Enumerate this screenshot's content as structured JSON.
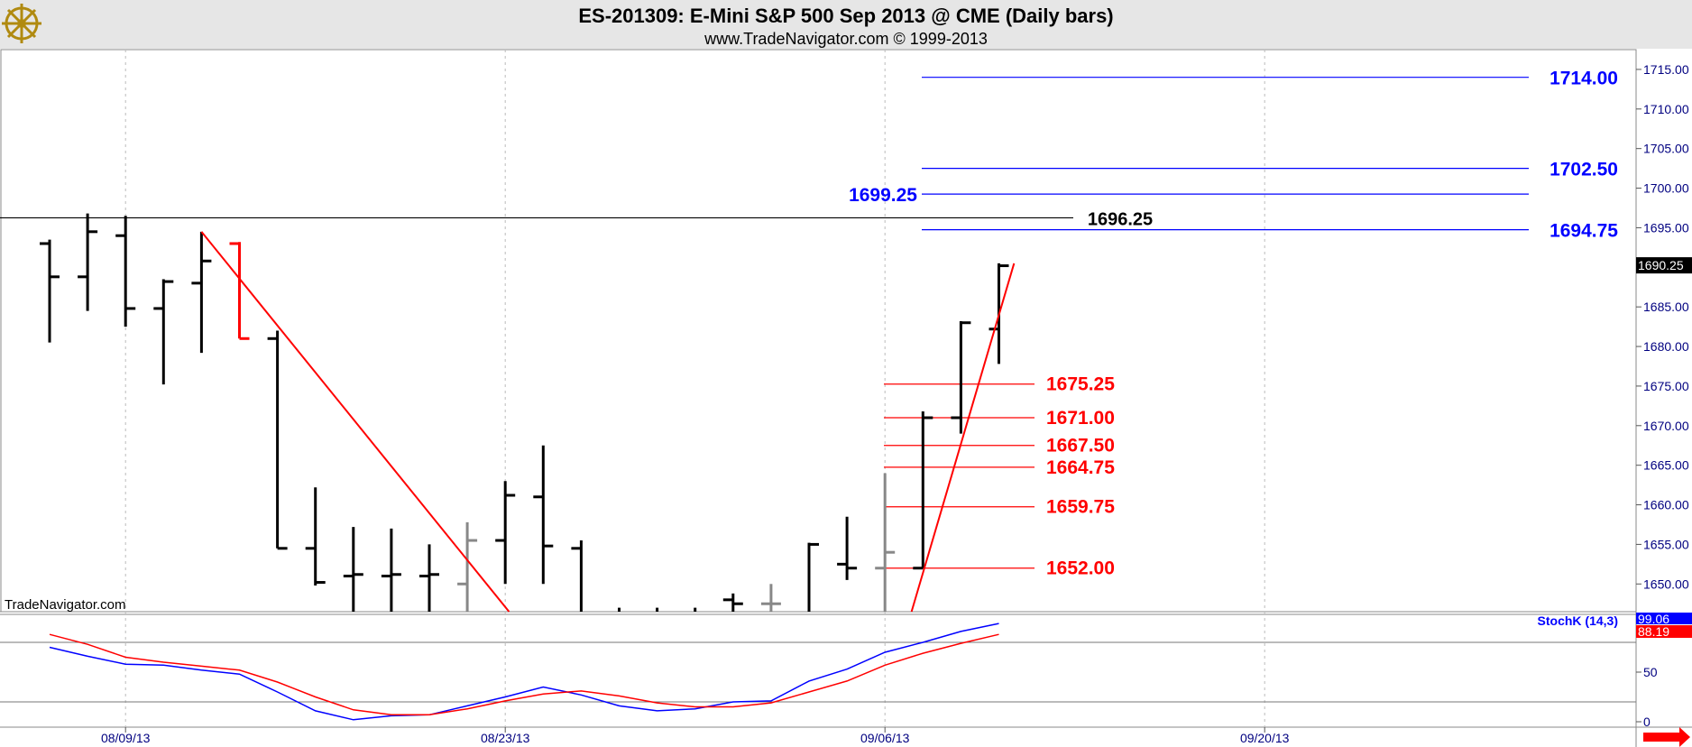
{
  "header": {
    "title": "ES-201309:  E-Mini S&P 500 Sep 2013 @ CME  (Daily bars)",
    "subtitle": "www.TradeNavigator.com © 1999-2013",
    "watermark": "TradeNavigator.com"
  },
  "colors": {
    "background": "#ffffff",
    "header_bg": "#e6e6e6",
    "bars": "#000000",
    "bars_gray": "#888888",
    "bars_red": "#ff0000",
    "red": "#ff0000",
    "blue": "#0000ff",
    "axis_text": "#000080",
    "grid": "#bbbbbb"
  },
  "icons": {
    "logo": "ship-wheel-logo-icon",
    "scroll": "red-right-arrow-icon"
  },
  "chart_data": {
    "type": "ohlc",
    "price_axis": {
      "ylim": [
        1646.5,
        1717.5
      ],
      "ticks": [
        1715,
        1710,
        1705,
        1700,
        1695,
        1690,
        1685,
        1680,
        1675,
        1670,
        1665,
        1660,
        1655,
        1650
      ],
      "tick_labels": [
        "1715.00",
        "1710.00",
        "1705.00",
        "1700.00",
        "1695.00",
        "1690.00",
        "1685.00",
        "1680.00",
        "1675.00",
        "1670.00",
        "1665.00",
        "1660.00",
        "1655.00",
        "1650.00"
      ],
      "last_price_label": "1690.25",
      "last_price": 1690.25
    },
    "x_axis": {
      "date_labels": [
        {
          "label": "08/09/13",
          "bar": 2
        },
        {
          "label": "08/23/13",
          "bar": 12
        },
        {
          "label": "09/06/13",
          "bar": 22
        },
        {
          "label": "09/20/13",
          "bar": 32
        }
      ]
    },
    "bars": [
      {
        "o": 1693.0,
        "h": 1693.5,
        "l": 1680.5,
        "c": 1688.8,
        "color": "black"
      },
      {
        "o": 1688.8,
        "h": 1696.8,
        "l": 1684.5,
        "c": 1694.5,
        "color": "black"
      },
      {
        "o": 1694.0,
        "h": 1696.5,
        "l": 1682.5,
        "c": 1684.8,
        "color": "black"
      },
      {
        "o": 1684.8,
        "h": 1688.5,
        "l": 1675.2,
        "c": 1688.2,
        "color": "black"
      },
      {
        "o": 1688.0,
        "h": 1694.5,
        "l": 1679.2,
        "c": 1690.8,
        "color": "black"
      },
      {
        "o": 1693.0,
        "h": 1693.2,
        "l": 1681.0,
        "c": 1681.0,
        "color": "red"
      },
      {
        "o": 1681.0,
        "h": 1682.0,
        "l": 1654.5,
        "c": 1654.5,
        "color": "black"
      },
      {
        "o": 1654.5,
        "h": 1662.2,
        "l": 1649.8,
        "c": 1650.2,
        "color": "black"
      },
      {
        "o": 1651.0,
        "h": 1657.2,
        "l": 1645.0,
        "c": 1651.2,
        "color": "black"
      },
      {
        "o": 1651.0,
        "h": 1657.0,
        "l": 1645.0,
        "c": 1651.2,
        "color": "black"
      },
      {
        "o": 1651.0,
        "h": 1655.0,
        "l": 1645.0,
        "c": 1651.2,
        "color": "black"
      },
      {
        "o": 1650.0,
        "h": 1657.8,
        "l": 1646.0,
        "c": 1655.5,
        "color": "gray"
      },
      {
        "o": 1655.5,
        "h": 1663.0,
        "l": 1650.0,
        "c": 1661.2,
        "color": "black"
      },
      {
        "o": 1661.0,
        "h": 1667.5,
        "l": 1650.0,
        "c": 1654.8,
        "color": "black"
      },
      {
        "o": 1654.5,
        "h": 1655.5,
        "l": 1645.0,
        "c": 1646.0,
        "color": "black"
      },
      {
        "o": 1646.0,
        "h": 1647.0,
        "l": 1645.0,
        "c": 1646.0,
        "color": "black"
      },
      {
        "o": 1646.0,
        "h": 1647.0,
        "l": 1645.0,
        "c": 1646.0,
        "color": "black"
      },
      {
        "o": 1646.0,
        "h": 1647.0,
        "l": 1645.0,
        "c": 1646.0,
        "color": "black"
      },
      {
        "o": 1648.0,
        "h": 1648.8,
        "l": 1645.0,
        "c": 1647.5,
        "color": "black"
      },
      {
        "o": 1647.5,
        "h": 1650.0,
        "l": 1645.0,
        "c": 1647.5,
        "color": "gray"
      },
      {
        "o": 1646.0,
        "h": 1655.2,
        "l": 1645.0,
        "c": 1655.0,
        "color": "black"
      },
      {
        "o": 1652.5,
        "h": 1658.5,
        "l": 1650.5,
        "c": 1652.0,
        "color": "black"
      },
      {
        "o": 1652.0,
        "h": 1664.0,
        "l": 1645.0,
        "c": 1654.0,
        "color": "gray"
      },
      {
        "o": 1652.0,
        "h": 1671.8,
        "l": 1652.0,
        "c": 1671.0,
        "color": "black"
      },
      {
        "o": 1671.0,
        "h": 1683.2,
        "l": 1669.0,
        "c": 1683.0,
        "color": "black"
      },
      {
        "o": 1682.2,
        "h": 1690.5,
        "l": 1677.8,
        "c": 1690.2,
        "color": "black"
      }
    ],
    "horizontal_levels": [
      {
        "value": 1696.25,
        "label": "1696.25",
        "color": "black"
      },
      {
        "value": 1714.0,
        "label": "1714.00",
        "color": "blue"
      },
      {
        "value": 1702.5,
        "label": "1702.50",
        "color": "blue"
      },
      {
        "value": 1699.25,
        "label": "1699.25",
        "color": "blue"
      },
      {
        "value": 1694.75,
        "label": "1694.75",
        "color": "blue"
      },
      {
        "value": 1675.25,
        "label": "1675.25",
        "color": "red"
      },
      {
        "value": 1671.0,
        "label": "1671.00",
        "color": "red"
      },
      {
        "value": 1667.5,
        "label": "1667.50",
        "color": "red"
      },
      {
        "value": 1664.75,
        "label": "1664.75",
        "color": "red"
      },
      {
        "value": 1659.75,
        "label": "1659.75",
        "color": "red"
      },
      {
        "value": 1652.0,
        "label": "1652.00",
        "color": "red"
      }
    ],
    "trendlines": [
      {
        "from": {
          "bar": 4,
          "y": 1694.5
        },
        "to": {
          "bar": 12.1,
          "y": 1646.5
        },
        "color": "red"
      },
      {
        "from": {
          "bar": 22.7,
          "y": 1646.5
        },
        "to": {
          "bar": 25.4,
          "y": 1690.5
        },
        "color": "red"
      }
    ],
    "stochastic": {
      "name": "StochK (14,3)",
      "k_label": "99.06",
      "d_label": "88.19",
      "ylim": [
        0,
        100
      ],
      "ticks": [
        50,
        0
      ],
      "tick_labels": [
        "50",
        "0"
      ],
      "levels": [
        80,
        20
      ],
      "series": [
        {
          "name": "K",
          "color": "blue",
          "values": [
            75,
            66,
            58,
            57,
            52,
            48,
            30,
            11,
            2,
            6,
            7,
            16,
            25,
            35,
            27,
            16,
            11,
            13,
            20,
            21,
            41,
            53,
            70,
            80,
            91,
            99
          ]
        },
        {
          "name": "D",
          "color": "red",
          "values": [
            88,
            78,
            65,
            60,
            56,
            52,
            40,
            25,
            12,
            7,
            7,
            13,
            21,
            28,
            31,
            26,
            19,
            15,
            15,
            19,
            30,
            41,
            57,
            69,
            79,
            88
          ]
        }
      ]
    }
  }
}
